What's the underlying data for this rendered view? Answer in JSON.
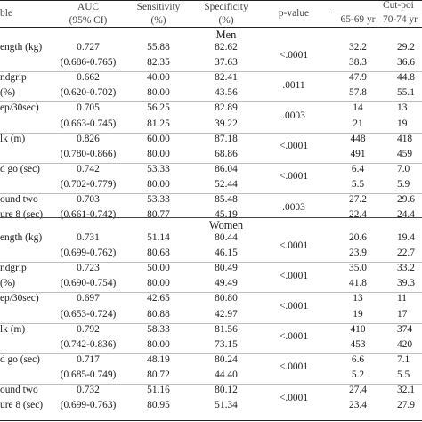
{
  "header": {
    "col0": "ble",
    "auc_line1": "AUC",
    "auc_line2": "(95% CI)",
    "sens_line1": "Sensitivity",
    "sens_line2": "(%)",
    "spec_line1": "Specificity",
    "spec_line2": "(%)",
    "pvalue": "p-value",
    "cutpoint": "Cut-poi",
    "age1": "65-69 yr",
    "age2": "70-74 yr"
  },
  "sections": [
    {
      "title": "Men",
      "rows": [
        {
          "label": "ength (kg)",
          "auc": "0.727",
          "sens": "55.88",
          "spec": "82.62",
          "pvalue": "<.0001",
          "c1": "32.2",
          "c2": "29.2"
        },
        {
          "label": "",
          "auc": "(0.686-0.765)",
          "sens": "82.35",
          "spec": "37.63",
          "pvalue": "",
          "c1": "38.3",
          "c2": "36.6"
        },
        {
          "label": "ndgrip",
          "auc": "0.662",
          "sens": "40.00",
          "spec": "82.41",
          "pvalue": ".0011",
          "c1": "47.9",
          "c2": "44.8"
        },
        {
          "label": "(%)",
          "auc": "(0.620-0.702)",
          "sens": "80.00",
          "spec": "43.56",
          "pvalue": "",
          "c1": "57.8",
          "c2": "55.1"
        },
        {
          "label": "ep/30sec)",
          "auc": "0.705",
          "sens": "56.25",
          "spec": "82.89",
          "pvalue": ".0003",
          "c1": "14",
          "c2": "13"
        },
        {
          "label": "",
          "auc": "(0.663-0.745)",
          "sens": "81.25",
          "spec": "39.22",
          "pvalue": "",
          "c1": "21",
          "c2": "19"
        },
        {
          "label": "lk (m)",
          "auc": "0.826",
          "sens": "60.00",
          "spec": "87.18",
          "pvalue": "<.0001",
          "c1": "448",
          "c2": "418"
        },
        {
          "label": "",
          "auc": "(0.780-0.866)",
          "sens": "80.00",
          "spec": "68.86",
          "pvalue": "",
          "c1": "491",
          "c2": "459"
        },
        {
          "label": "d go (sec)",
          "auc": "0.742",
          "sens": "53.33",
          "spec": "86.04",
          "pvalue": "<.0001",
          "c1": "6.4",
          "c2": "7.0"
        },
        {
          "label": "",
          "auc": "(0.702-0.779)",
          "sens": "80.00",
          "spec": "52.44",
          "pvalue": "",
          "c1": "5.5",
          "c2": "5.9"
        },
        {
          "label": "ound two",
          "auc": "0.703",
          "sens": "53.33",
          "spec": "85.48",
          "pvalue": ".0003",
          "c1": "27.2",
          "c2": "29.6"
        },
        {
          "label": "ure 8 (sec)",
          "auc": "(0.661-0.742)",
          "sens": "80.77",
          "spec": "45.19",
          "pvalue": "",
          "c1": "22.4",
          "c2": "24.4"
        }
      ]
    },
    {
      "title": "Women",
      "rows": [
        {
          "label": "ength (kg)",
          "auc": "0.731",
          "sens": "51.14",
          "spec": "80.44",
          "pvalue": "<.0001",
          "c1": "20.6",
          "c2": "19.4"
        },
        {
          "label": "",
          "auc": "(0.699-0.762)",
          "sens": "80.68",
          "spec": "46.15",
          "pvalue": "",
          "c1": "23.9",
          "c2": "22.7"
        },
        {
          "label": "ndgrip",
          "auc": "0.723",
          "sens": "50.00",
          "spec": "80.49",
          "pvalue": "<.0001",
          "c1": "35.0",
          "c2": "33.2"
        },
        {
          "label": "(%)",
          "auc": "(0.690-0.754)",
          "sens": "80.00",
          "spec": "49.49",
          "pvalue": "",
          "c1": "41.8",
          "c2": "39.3"
        },
        {
          "label": "ep/30sec)",
          "auc": "0.697",
          "sens": "42.65",
          "spec": "80.80",
          "pvalue": "<.0001",
          "c1": "13",
          "c2": "11"
        },
        {
          "label": "",
          "auc": "(0.653-0.724)",
          "sens": "80.88",
          "spec": "42.97",
          "pvalue": "",
          "c1": "19",
          "c2": "17"
        },
        {
          "label": "lk (m)",
          "auc": "0.792",
          "sens": "58.33",
          "spec": "81.56",
          "pvalue": "<.0001",
          "c1": "410",
          "c2": "374"
        },
        {
          "label": "",
          "auc": "(0.742-0.836)",
          "sens": "80.00",
          "spec": "73.15",
          "pvalue": "",
          "c1": "453",
          "c2": "420"
        },
        {
          "label": "d go (sec)",
          "auc": "0.717",
          "sens": "48.19",
          "spec": "80.24",
          "pvalue": "<.0001",
          "c1": "6.6",
          "c2": "7.1"
        },
        {
          "label": "",
          "auc": "(0.685-0.749)",
          "sens": "80.72",
          "spec": "44.40",
          "pvalue": "",
          "c1": "5.2",
          "c2": "5.5"
        },
        {
          "label": "ound two",
          "auc": "0.732",
          "sens": "51.16",
          "spec": "80.12",
          "pvalue": "<.0001",
          "c1": "27.4",
          "c2": "32.1"
        },
        {
          "label": "ure 8 (sec)",
          "auc": "(0.699-0.763)",
          "sens": "80.95",
          "spec": "51.34",
          "pvalue": "",
          "c1": "23.4",
          "c2": "27.9"
        }
      ]
    }
  ]
}
